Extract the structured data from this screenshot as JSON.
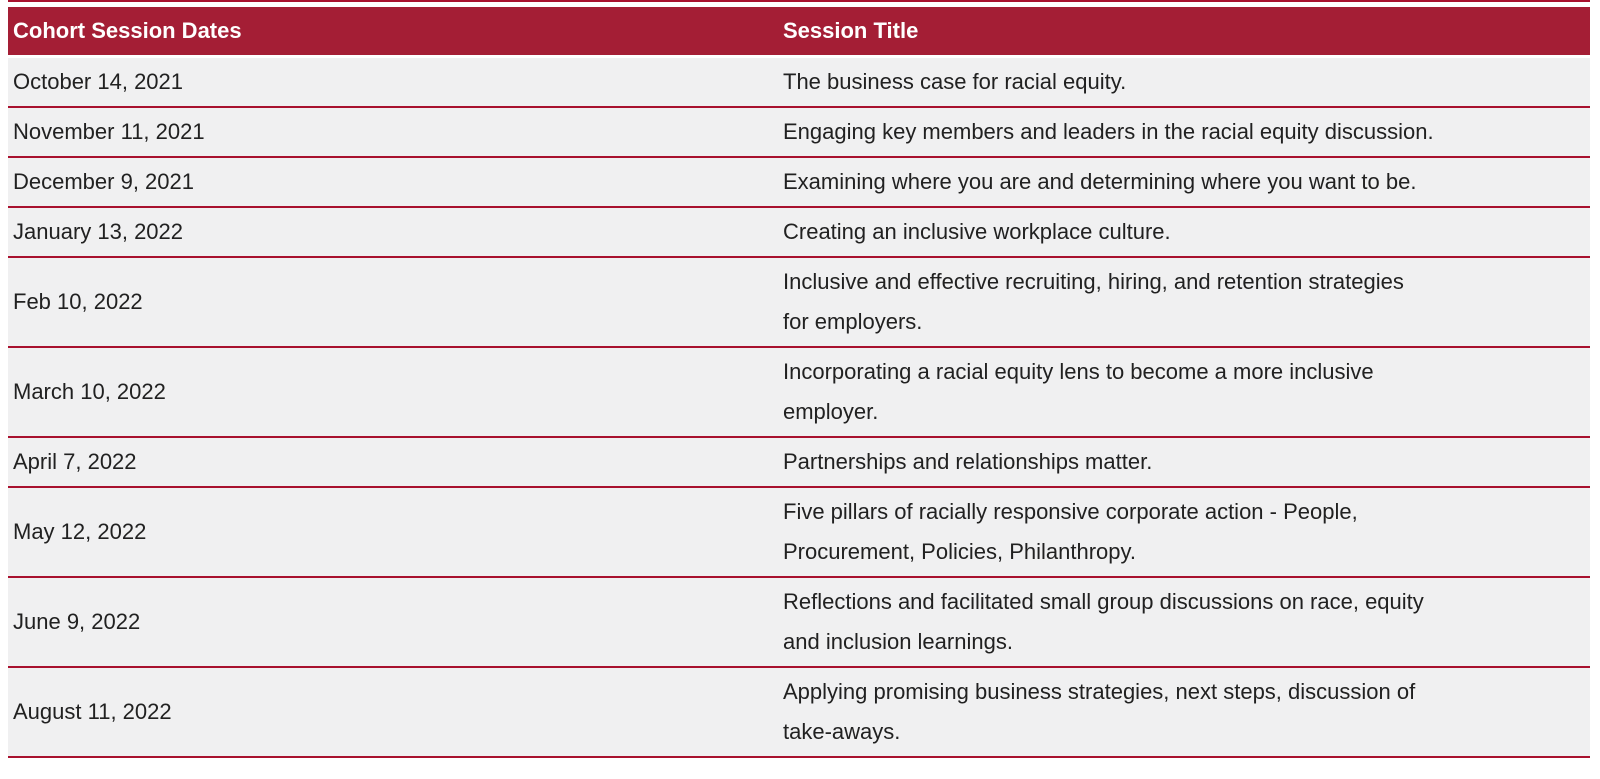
{
  "theme": {
    "header_bg": "#A41E35",
    "divider": "#A8112E",
    "row_bg": "#F0F0F1",
    "text": "#212121",
    "header_text": "#ffffff",
    "page_bg": "#ffffff"
  },
  "table": {
    "headers": [
      "Cohort Session Dates",
      "Session Title"
    ],
    "rows": [
      {
        "date": "October 14, 2021",
        "title": "The business case for racial equity."
      },
      {
        "date": "November 11, 2021",
        "title": "Engaging key members and leaders in the racial equity discussion."
      },
      {
        "date": "December 9, 2021",
        "title": "Examining where you are and determining where you want to be."
      },
      {
        "date": "January 13, 2022",
        "title": "Creating an inclusive workplace culture."
      },
      {
        "date": "Feb 10, 2022",
        "title": "Inclusive and effective recruiting, hiring, and retention strategies\nfor employers."
      },
      {
        "date": "March 10, 2022",
        "title": "Incorporating a racial equity lens to become a more inclusive\nemployer."
      },
      {
        "date": "April 7, 2022",
        "title": "Partnerships and relationships matter."
      },
      {
        "date": "May 12, 2022",
        "title": "Five pillars of racially responsive corporate action - People,\nProcurement, Policies, Philanthropy."
      },
      {
        "date": "June 9, 2022",
        "title": "Reflections and facilitated small group discussions on race, equity\nand inclusion learnings."
      },
      {
        "date": "August 11, 2022",
        "title": "Applying promising business strategies, next steps, discussion of\ntake-aways."
      }
    ]
  }
}
